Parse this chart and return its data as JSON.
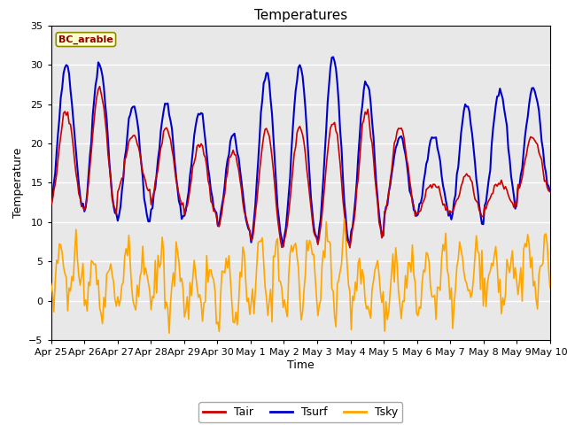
{
  "title": "Temperatures",
  "xlabel": "Time",
  "ylabel": "Temperature",
  "annotation": "BC_arable",
  "ylim": [
    -5,
    35
  ],
  "n_days": 15,
  "x_tick_labels": [
    "Apr 25",
    "Apr 26",
    "Apr 27",
    "Apr 28",
    "Apr 29",
    "Apr 30",
    "May 1",
    "May 2",
    "May 3",
    "May 4",
    "May 5",
    "May 6",
    "May 7",
    "May 8",
    "May 9",
    "May 10"
  ],
  "legend_labels": [
    "Tair",
    "Tsurf",
    "Tsky"
  ],
  "line_colors": {
    "Tair": "#cc0000",
    "Tsurf": "#0000cc",
    "Tsky": "#ffa500"
  },
  "bg_color": "#e8e8e8",
  "annotation_bg": "#ffffcc",
  "annotation_text_color": "#8b0000",
  "annotation_border_color": "#8b8b00",
  "n_points_per_day": 24,
  "yticks": [
    -5,
    0,
    5,
    10,
    15,
    20,
    25,
    30,
    35
  ],
  "grid_color": "#ffffff",
  "fig_bg": "#ffffff"
}
